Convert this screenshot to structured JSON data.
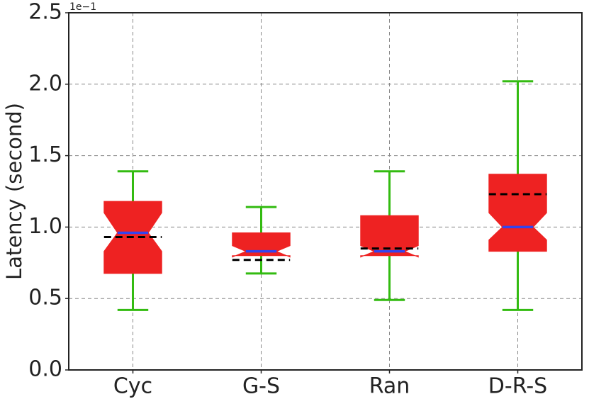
{
  "chart_data": {
    "type": "box",
    "ylabel": "Latency (second)",
    "offset_text": "1e−1",
    "categories": [
      "Cyc",
      "G-S",
      "Ran",
      "D-R-S"
    ],
    "boxes": [
      {
        "whisker_low": 0.42,
        "q1": 0.675,
        "notch_low": 0.83,
        "median": 0.96,
        "notch_high": 1.1,
        "q3": 1.18,
        "whisker_high": 1.39,
        "mean": 0.93
      },
      {
        "whisker_low": 0.675,
        "q1": 0.8,
        "notch_low": 0.79,
        "median": 0.83,
        "notch_high": 0.87,
        "q3": 0.96,
        "whisker_high": 1.14,
        "mean": 0.77
      },
      {
        "whisker_low": 0.49,
        "q1": 0.8,
        "notch_low": 0.79,
        "median": 0.83,
        "notch_high": 0.87,
        "q3": 1.08,
        "whisker_high": 1.39,
        "mean": 0.85
      },
      {
        "whisker_low": 0.42,
        "q1": 0.83,
        "notch_low": 0.91,
        "median": 1.0,
        "notch_high": 1.1,
        "q3": 1.37,
        "whisker_high": 2.02,
        "mean": 1.23
      }
    ],
    "box_color": "#ee2222",
    "whisker_color": "#33bb11",
    "median_color": "#3344ee",
    "mean_color": "#000000",
    "ylim": [
      0,
      2.5
    ],
    "yticks": [
      {
        "value": 0,
        "label": "0.0"
      },
      0.5,
      {
        "value": 1,
        "label": "1.0"
      },
      1.5,
      {
        "value": 2,
        "label": "2.0"
      },
      2.5
    ],
    "grid": true
  }
}
